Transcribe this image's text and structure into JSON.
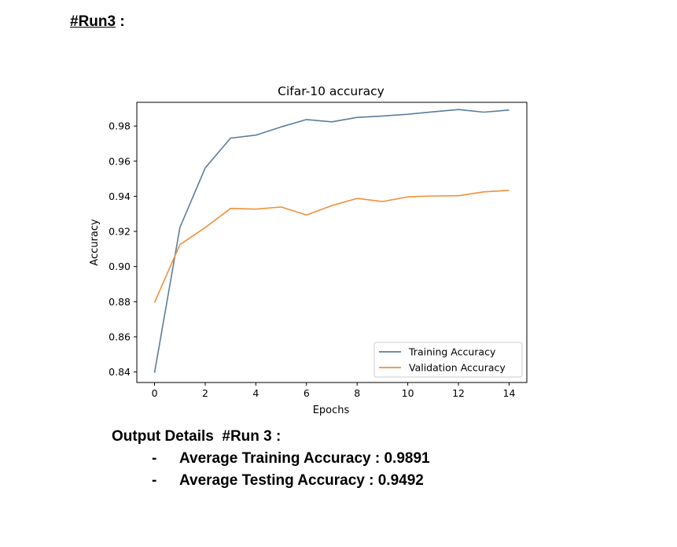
{
  "heading": {
    "label": "#Run3",
    "suffix": " :"
  },
  "chart_data": {
    "type": "line",
    "title": "Cifar-10 accuracy",
    "xlabel": "Epochs",
    "ylabel": "Accuracy",
    "xlim": [
      -0.7,
      14.7
    ],
    "ylim": [
      0.834,
      0.9935
    ],
    "xticks": [
      0,
      2,
      4,
      6,
      8,
      10,
      12,
      14
    ],
    "yticks": [
      0.84,
      0.86,
      0.88,
      0.9,
      0.92,
      0.94,
      0.96,
      0.98
    ],
    "x": [
      0,
      1,
      2,
      3,
      4,
      5,
      6,
      7,
      8,
      9,
      10,
      11,
      12,
      13,
      14
    ],
    "legend_position": "lower-right",
    "series": [
      {
        "name": "Training Accuracy",
        "color": "#5b7e9c",
        "values": [
          0.8395,
          0.9222,
          0.9562,
          0.9731,
          0.9748,
          0.9795,
          0.9837,
          0.9824,
          0.9849,
          0.9857,
          0.9867,
          0.9881,
          0.9894,
          0.9879,
          0.9891
        ]
      },
      {
        "name": "Validation Accuracy",
        "color": "#f0903a",
        "values": [
          0.8795,
          0.9125,
          0.9222,
          0.9331,
          0.9327,
          0.9339,
          0.9294,
          0.9347,
          0.9388,
          0.937,
          0.9397,
          0.9402,
          0.9403,
          0.9425,
          0.9434
        ]
      }
    ]
  },
  "details": {
    "title": "Output Details  #Run 3 :",
    "items": [
      {
        "bullet": "-",
        "text": "Average Training Accuracy : 0.9891"
      },
      {
        "bullet": "-",
        "text": "Average Testing Accuracy : 0.9492"
      }
    ]
  }
}
